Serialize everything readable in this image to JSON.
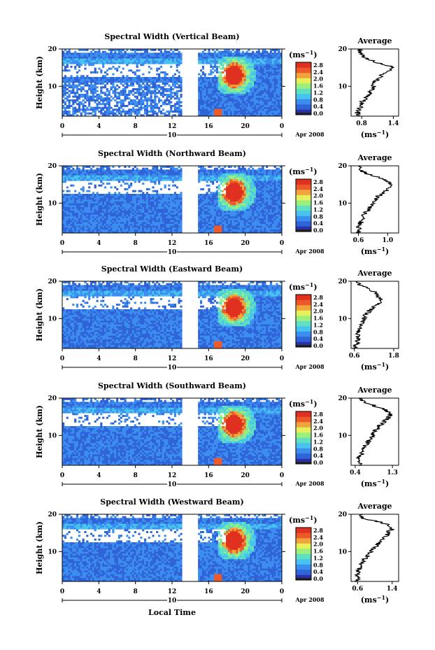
{
  "shared": {
    "ylabel": "Height (km)",
    "unit_label": "(ms",
    "unit_exp": "−1",
    "colorbar_ticks": [
      "2.8",
      "2.4",
      "2.0",
      "1.6",
      "1.2",
      "0.8",
      "0.4",
      "0.0"
    ],
    "colorbar_range": [
      0.0,
      2.8
    ],
    "ylim": [
      2,
      20
    ],
    "y_ticks": [
      10,
      20
    ],
    "x_ticks": [
      "0",
      "4",
      "8",
      "12",
      "16",
      "20",
      "0"
    ],
    "x_tick_hours": [
      0,
      4,
      8,
      12,
      16,
      20,
      24
    ],
    "date_day": "10",
    "date_month_year": "Apr 2008",
    "x_axis_label": "Local Time",
    "avg_title": "Average",
    "avg_unit": "(ms",
    "avg_unit_exp": "−1",
    "data_gap_hours": [
      13.1,
      14.8
    ],
    "colors": [
      "#2b2fa8",
      "#2f63d8",
      "#3c8df0",
      "#46c3ee",
      "#5fe0c0",
      "#9cef7c",
      "#e6f05a",
      "#f2a43c",
      "#ec5a2c",
      "#e03020"
    ]
  },
  "chart_data": [
    {
      "type": "heatmap",
      "title": "Spectral Width (Vertical Beam)",
      "avg_xticks": [
        "0.8",
        "1.4"
      ],
      "avg_xlim": [
        0.6,
        1.5
      ],
      "avg_profile": {
        "height_km": [
          2,
          3,
          4,
          5,
          6,
          7,
          8,
          9,
          10,
          11,
          12,
          13,
          14,
          15,
          16,
          17,
          18,
          19,
          20
        ],
        "value": [
          0.72,
          0.72,
          0.76,
          0.78,
          0.82,
          0.88,
          0.95,
          1.0,
          1.02,
          1.04,
          1.1,
          1.18,
          1.3,
          1.42,
          1.2,
          0.95,
          0.82,
          0.78,
          0.76
        ]
      }
    },
    {
      "type": "heatmap",
      "title": "Spectral Width (Northward Beam)",
      "avg_xticks": [
        "0.6",
        "1.0"
      ],
      "avg_xlim": [
        0.5,
        1.15
      ],
      "avg_profile": {
        "height_km": [
          2,
          3,
          4,
          5,
          6,
          7,
          8,
          9,
          10,
          11,
          12,
          13,
          14,
          15,
          16,
          17,
          18,
          19,
          20
        ],
        "value": [
          0.6,
          0.62,
          0.6,
          0.64,
          0.66,
          0.68,
          0.72,
          0.76,
          0.8,
          0.84,
          0.88,
          0.95,
          1.02,
          1.05,
          1.0,
          0.88,
          0.7,
          0.62,
          0.62
        ]
      }
    },
    {
      "type": "heatmap",
      "title": "Spectral Width (Eastward Beam)",
      "avg_xticks": [
        "0.6",
        "1.8"
      ],
      "avg_xlim": [
        0.5,
        1.95
      ],
      "avg_profile": {
        "height_km": [
          2,
          3,
          4,
          5,
          6,
          7,
          8,
          9,
          10,
          11,
          12,
          13,
          14,
          15,
          16,
          17,
          18,
          19,
          20
        ],
        "value": [
          0.62,
          0.66,
          0.7,
          0.7,
          0.72,
          0.76,
          0.8,
          0.86,
          0.9,
          0.95,
          1.05,
          1.2,
          1.35,
          1.4,
          1.32,
          1.25,
          1.05,
          0.75,
          0.7
        ]
      }
    },
    {
      "type": "heatmap",
      "title": "Spectral Width (Southward Beam)",
      "avg_xticks": [
        "0.4",
        "1.3"
      ],
      "avg_xlim": [
        0.3,
        1.45
      ],
      "avg_profile": {
        "height_km": [
          2,
          3,
          4,
          5,
          6,
          7,
          8,
          9,
          10,
          11,
          12,
          13,
          14,
          15,
          16,
          17,
          18,
          19,
          20
        ],
        "value": [
          0.5,
          0.52,
          0.5,
          0.55,
          0.58,
          0.62,
          0.7,
          0.76,
          0.82,
          0.88,
          0.94,
          1.02,
          1.12,
          1.22,
          1.25,
          1.1,
          0.85,
          0.6,
          0.55
        ]
      }
    },
    {
      "type": "heatmap",
      "title": "Spectral Width (Westward Beam)",
      "avg_xticks": [
        "0.6",
        "1.4"
      ],
      "avg_xlim": [
        0.45,
        1.55
      ],
      "avg_profile": {
        "height_km": [
          2,
          3,
          4,
          5,
          6,
          7,
          8,
          9,
          10,
          11,
          12,
          13,
          14,
          15,
          16,
          17,
          18,
          19,
          20
        ],
        "value": [
          0.6,
          0.62,
          0.6,
          0.64,
          0.66,
          0.7,
          0.76,
          0.84,
          0.9,
          0.98,
          1.06,
          1.16,
          1.26,
          1.3,
          1.38,
          1.34,
          1.1,
          0.72,
          0.66
        ]
      }
    }
  ]
}
